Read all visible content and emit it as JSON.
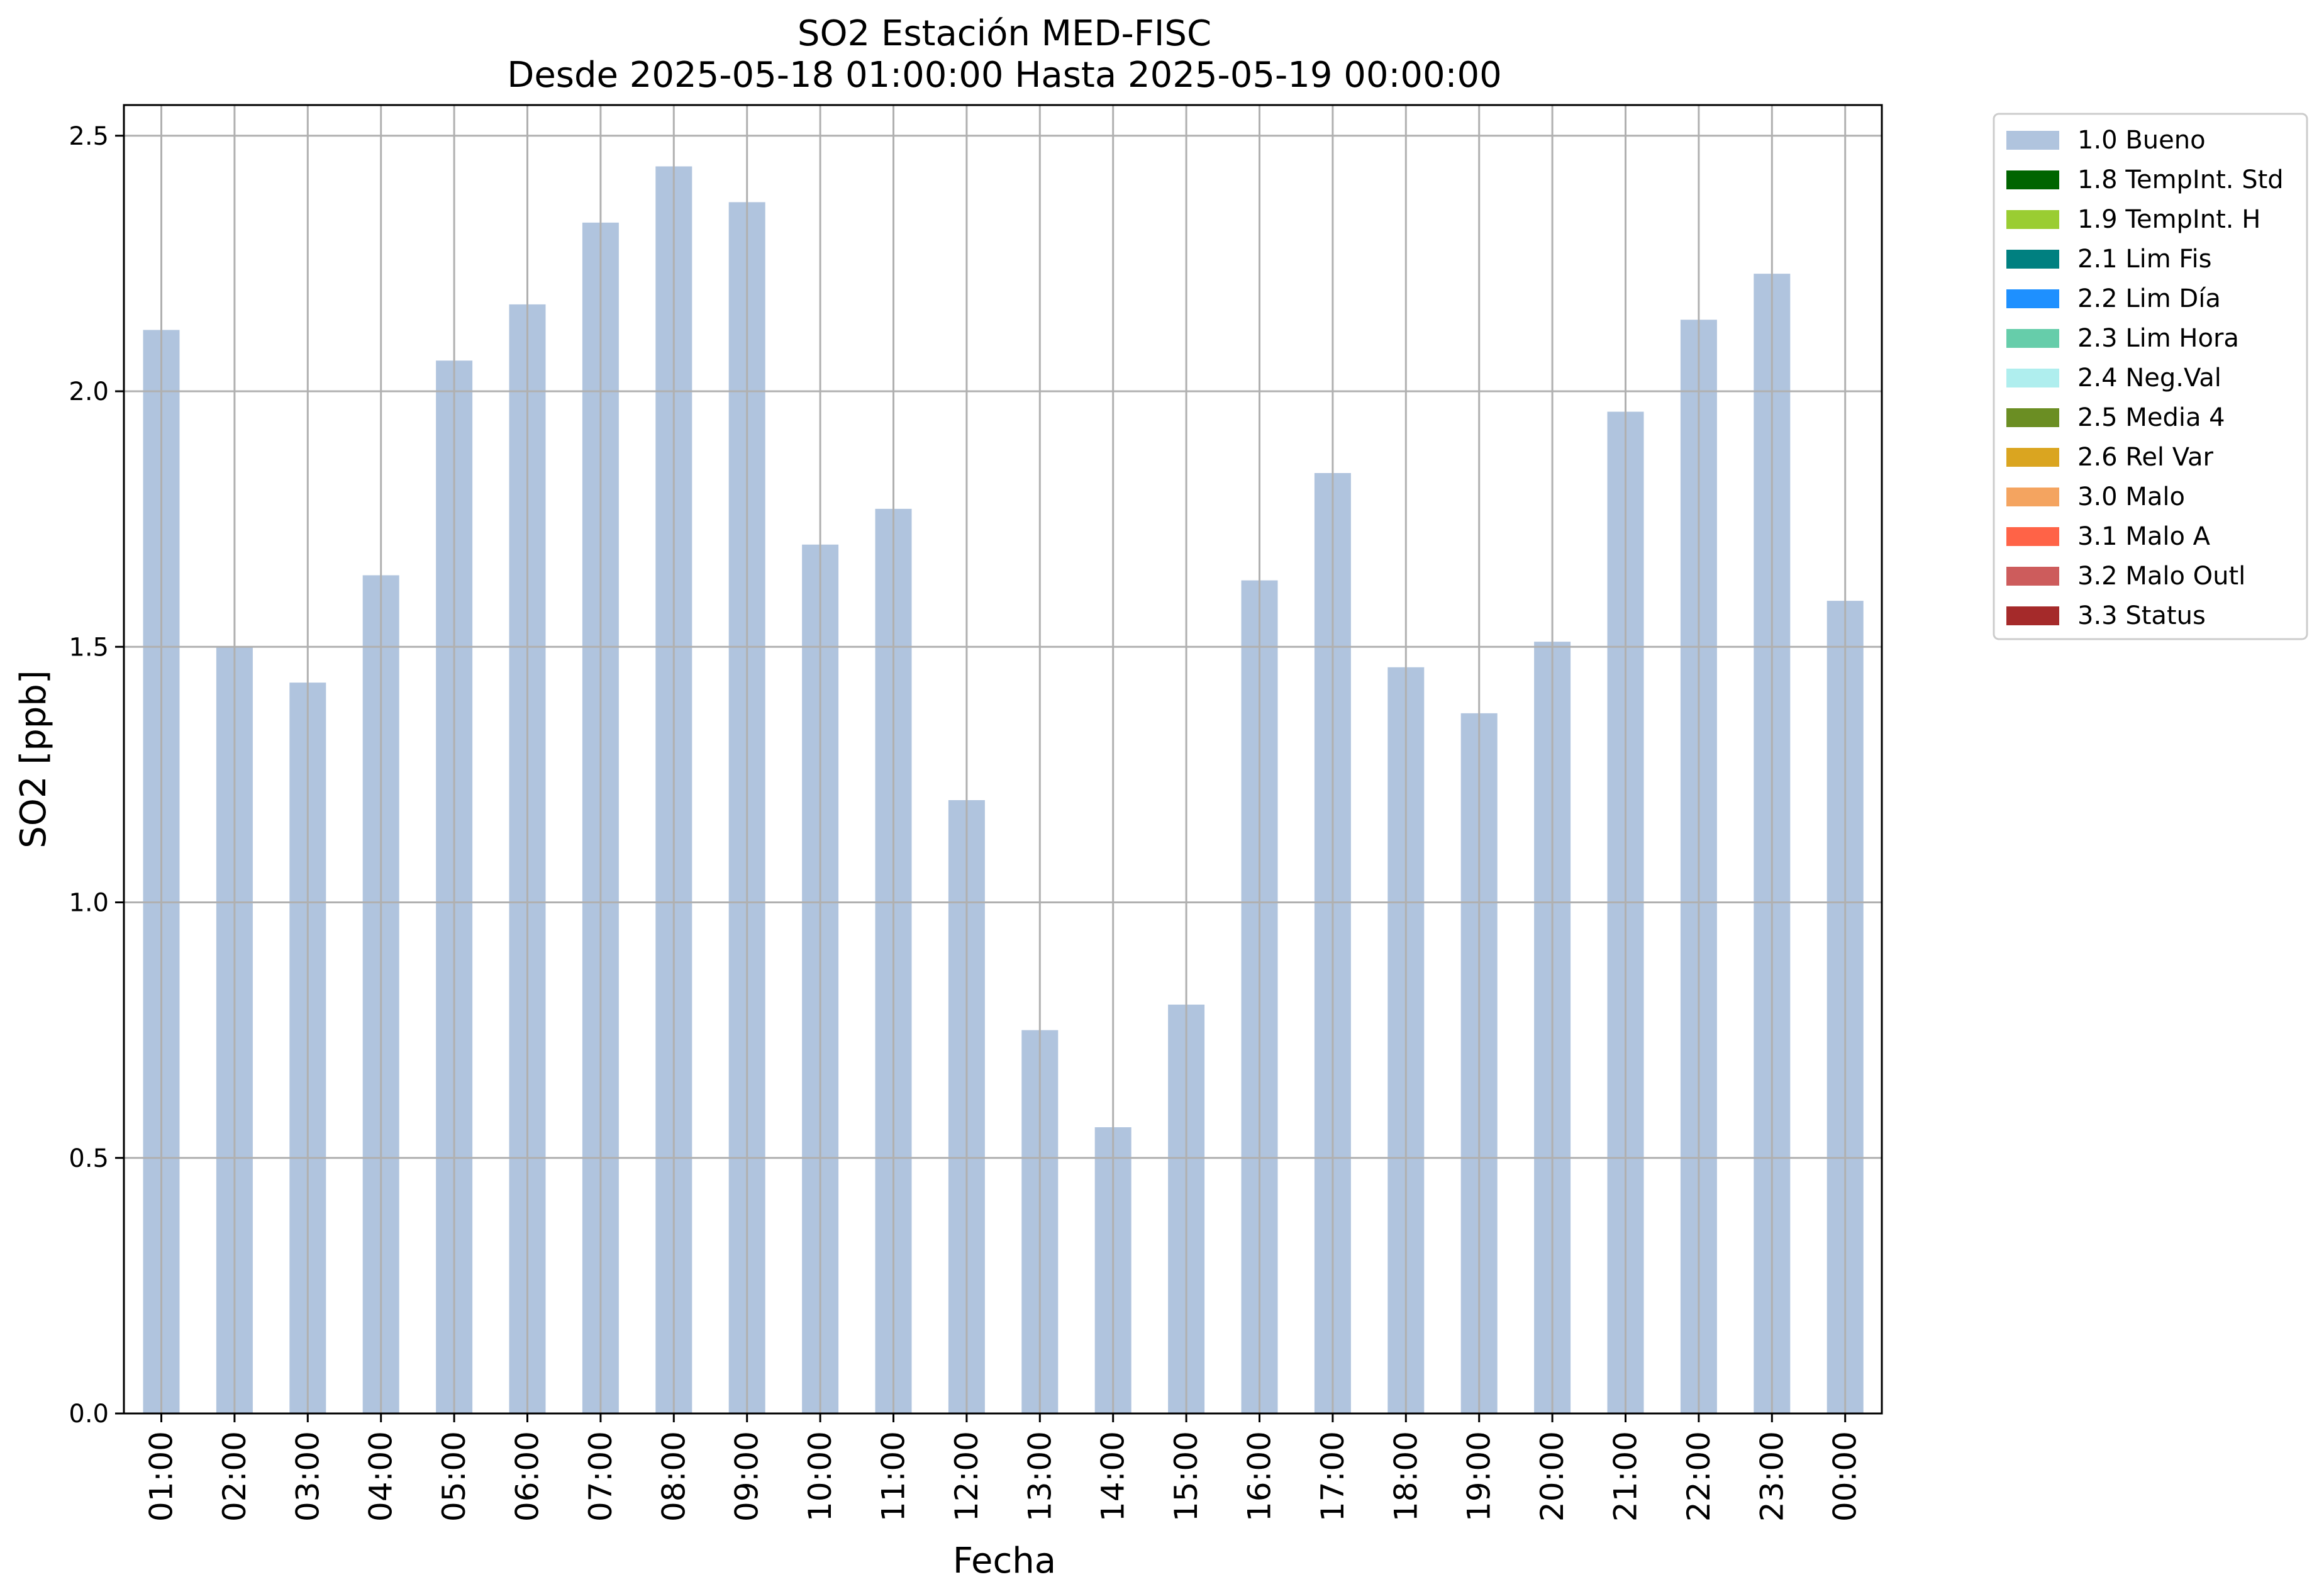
{
  "chart_data": {
    "type": "bar",
    "title": "SO2 Estación MED-FISC",
    "subtitle": "Desde 2025-05-18 01:00:00 Hasta 2025-05-19 00:00:00",
    "xlabel": "Fecha",
    "ylabel": "SO2 [ppb]",
    "ylim": [
      0,
      2.56
    ],
    "yticks": [
      "0.0",
      "0.5",
      "1.0",
      "1.5",
      "2.0",
      "2.5"
    ],
    "grid": true,
    "legend_position": "outside-top-right",
    "categories": [
      "01:00",
      "02:00",
      "03:00",
      "04:00",
      "05:00",
      "06:00",
      "07:00",
      "08:00",
      "09:00",
      "10:00",
      "11:00",
      "12:00",
      "13:00",
      "14:00",
      "15:00",
      "16:00",
      "17:00",
      "18:00",
      "19:00",
      "20:00",
      "21:00",
      "22:00",
      "23:00",
      "00:00"
    ],
    "series": [
      {
        "name": "1.0 Bueno",
        "color": "#b0c4de",
        "values": [
          2.12,
          1.5,
          1.43,
          1.64,
          2.06,
          2.17,
          2.33,
          2.44,
          2.37,
          1.7,
          1.77,
          1.2,
          0.75,
          0.56,
          0.8,
          1.63,
          1.84,
          1.46,
          1.37,
          1.51,
          1.96,
          2.14,
          2.23,
          1.59
        ]
      }
    ],
    "legend": [
      {
        "label": "1.0 Bueno",
        "color": "#b0c4de"
      },
      {
        "label": "1.8 TempInt. Std",
        "color": "#006400"
      },
      {
        "label": "1.9 TempInt. H",
        "color": "#9acd32"
      },
      {
        "label": "2.1 Lim Fis",
        "color": "#008080"
      },
      {
        "label": "2.2 Lim Día",
        "color": "#1e90ff"
      },
      {
        "label": "2.3 Lim Hora",
        "color": "#66cdaa"
      },
      {
        "label": "2.4 Neg.Val",
        "color": "#afeeee"
      },
      {
        "label": "2.5 Media 4",
        "color": "#6b8e23"
      },
      {
        "label": "2.6 Rel Var",
        "color": "#daa520"
      },
      {
        "label": "3.0 Malo",
        "color": "#f4a460"
      },
      {
        "label": "3.1 Malo A",
        "color": "#ff6347"
      },
      {
        "label": "3.2 Malo Outl",
        "color": "#cd5c5c"
      },
      {
        "label": "3.3 Status",
        "color": "#a52a2a"
      }
    ]
  }
}
